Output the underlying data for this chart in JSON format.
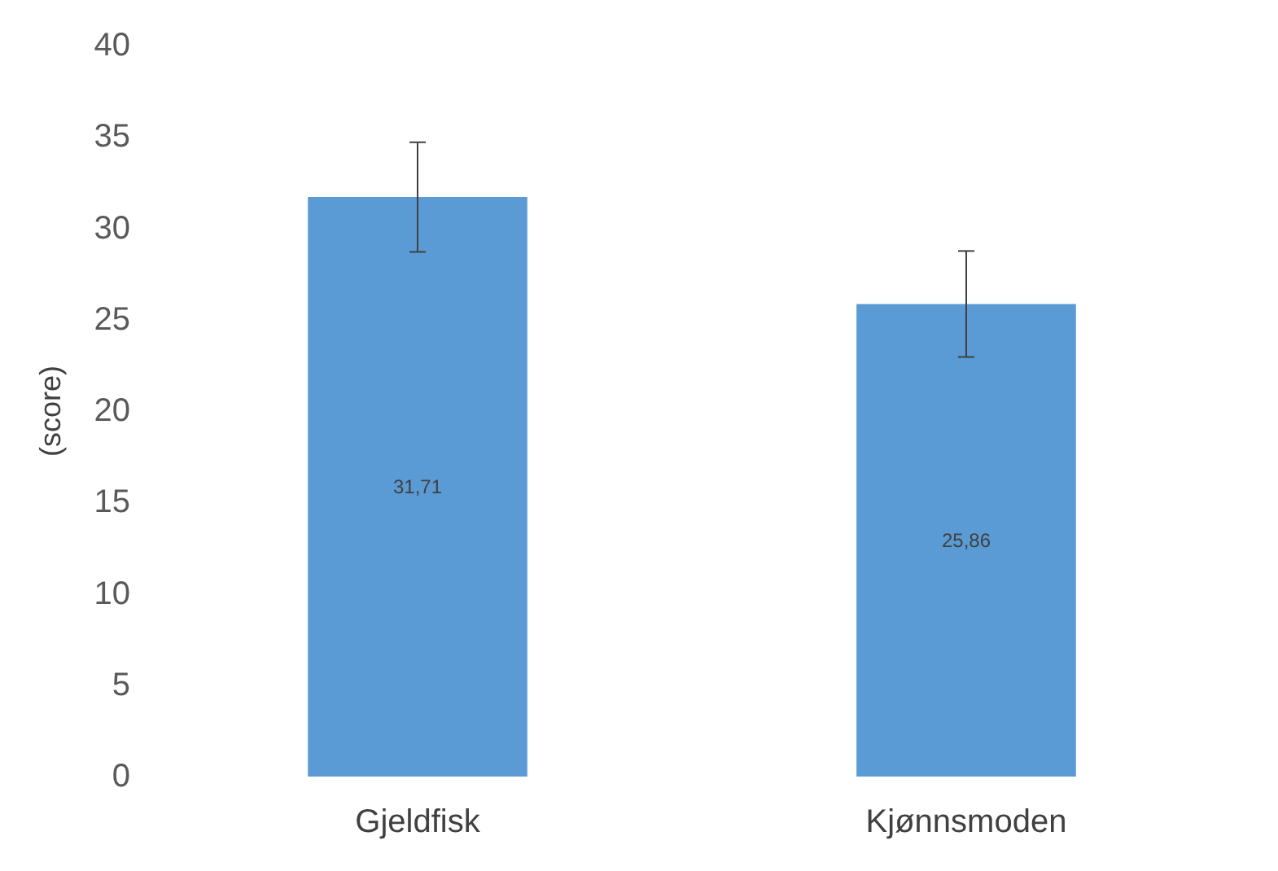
{
  "chart_data": {
    "type": "bar",
    "ylabel": "(score)",
    "categories": [
      "Gjeldfisk",
      "Kjønnsmoden"
    ],
    "values": [
      31.71,
      25.86
    ],
    "value_labels": [
      "31,71",
      "25,86"
    ],
    "errors": [
      3,
      2.9
    ],
    "color": "#5b9bd5",
    "ylim": [
      0,
      40
    ],
    "yticks": [
      0,
      5,
      10,
      15,
      20,
      25,
      30,
      35,
      40
    ],
    "grid": false
  }
}
